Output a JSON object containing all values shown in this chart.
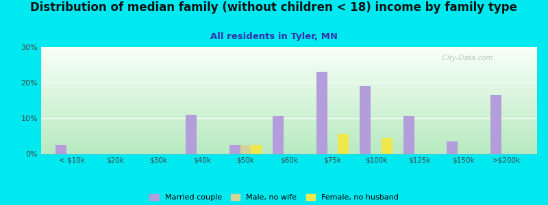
{
  "title": "Distribution of median family (without children < 18) income by family type",
  "subtitle": "All residents in Tyler, MN",
  "categories": [
    "< $10k",
    "$20k",
    "$30k",
    "$40k",
    "$50k",
    "$60k",
    "$75k",
    "$100k",
    "$125k",
    "$150k",
    ">$200k"
  ],
  "married_couple": [
    2.5,
    0,
    0,
    11.0,
    2.5,
    10.5,
    23.0,
    19.0,
    10.5,
    3.5,
    16.5
  ],
  "male_no_wife": [
    0,
    0,
    0,
    0,
    2.5,
    0,
    0,
    0,
    0,
    0,
    0
  ],
  "female_no_husband": [
    0,
    0,
    0,
    0,
    2.5,
    0,
    5.5,
    4.5,
    0,
    0,
    0
  ],
  "married_color": "#b39ddb",
  "male_color": "#d4d49a",
  "female_color": "#f0e84a",
  "ylim": [
    0,
    30
  ],
  "yticks": [
    0,
    10,
    20,
    30
  ],
  "ytick_labels": [
    "0%",
    "10%",
    "20%",
    "30%"
  ],
  "background_outer": "#00e8f0",
  "background_plot_top": "#f8fff8",
  "background_plot_bottom": "#b8eac0",
  "bar_width": 0.25,
  "watermark": "  City-Data.com",
  "title_fontsize": 12,
  "subtitle_fontsize": 9.5
}
